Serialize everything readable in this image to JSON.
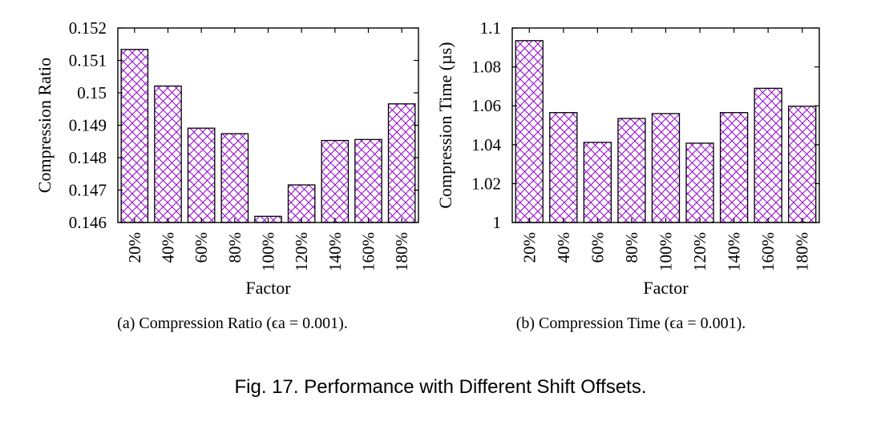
{
  "figure_caption": "Fig. 17.  Performance with Different Shift Offsets.",
  "colors": {
    "bar_edge": "#000000",
    "hatch": "#9400D3",
    "axis": "#000000"
  },
  "chart_data": [
    {
      "type": "bar",
      "subcaption": "(a)  Compression Ratio (ϵa = 0.001).",
      "xlabel": "Factor",
      "ylabel": "Compression Ratio",
      "categories": [
        "20%",
        "40%",
        "60%",
        "80%",
        "100%",
        "120%",
        "140%",
        "160%",
        "180%"
      ],
      "values": [
        0.15134,
        0.15021,
        0.14891,
        0.14874,
        0.14619,
        0.14716,
        0.14853,
        0.14856,
        0.14966
      ],
      "ylim": [
        0.146,
        0.152
      ],
      "yticks": [
        "0.146",
        "0.147",
        "0.148",
        "0.149",
        "0.15",
        "0.151",
        "0.152"
      ],
      "hatch": "cross-hatch",
      "grid": false
    },
    {
      "type": "bar",
      "subcaption": "(b)  Compression Time (ϵa = 0.001).",
      "xlabel": "Factor",
      "ylabel": "Compression Time (µs)",
      "categories": [
        "20%",
        "40%",
        "60%",
        "80%",
        "100%",
        "120%",
        "140%",
        "160%",
        "180%"
      ],
      "values": [
        1.0935,
        1.0565,
        1.0412,
        1.0535,
        1.056,
        1.0408,
        1.0565,
        1.069,
        1.0598
      ],
      "ylim": [
        1.0,
        1.1
      ],
      "yticks": [
        "1",
        "1.02",
        "1.04",
        "1.06",
        "1.08",
        "1.1"
      ],
      "hatch": "cross-hatch",
      "grid": false
    }
  ]
}
